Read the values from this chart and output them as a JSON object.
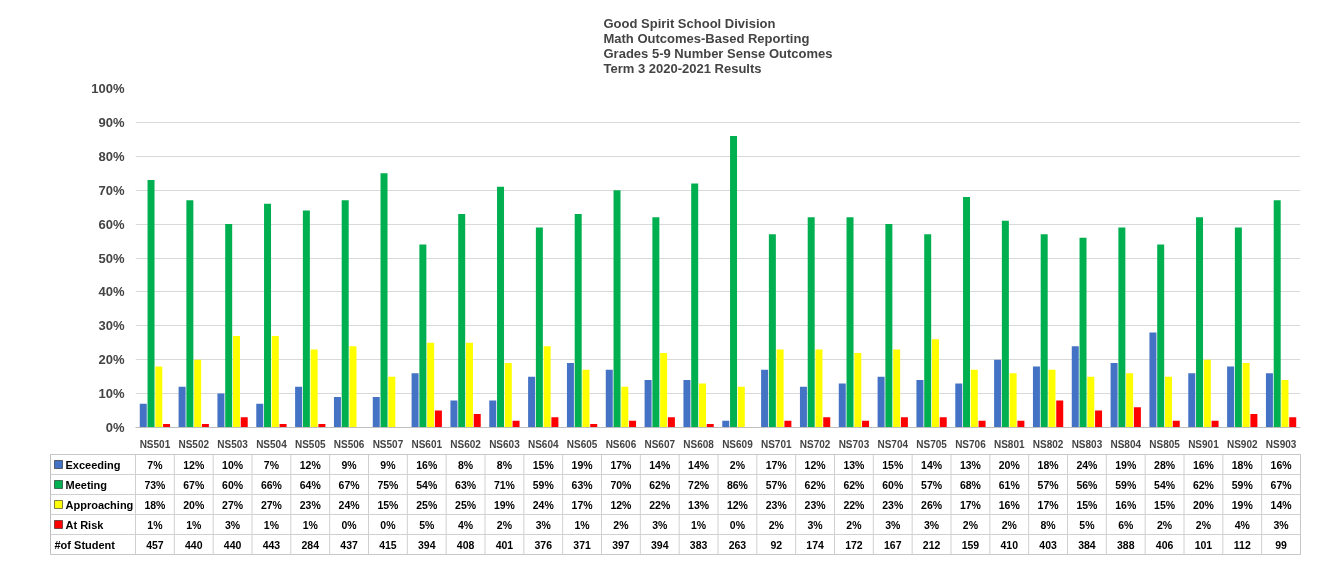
{
  "chart_data": {
    "type": "bar",
    "title": "Good Spirit School Division\nMath Outcomes-Based Reporting\nGrades 5-9 Number Sense Outcomes\nTerm 3 2020-2021 Results",
    "categories": [
      "NS501",
      "NS502",
      "NS503",
      "NS504",
      "NS505",
      "NS506",
      "NS507",
      "NS601",
      "NS602",
      "NS603",
      "NS604",
      "NS605",
      "NS606",
      "NS607",
      "NS608",
      "NS609",
      "NS701",
      "NS702",
      "NS703",
      "NS704",
      "NS705",
      "NS706",
      "NS801",
      "NS802",
      "NS803",
      "NS804",
      "NS805",
      "NS901",
      "NS902",
      "NS903"
    ],
    "series": [
      {
        "name": "Exceeding",
        "color": "#4472c4",
        "values": [
          7,
          12,
          10,
          7,
          12,
          9,
          9,
          16,
          8,
          8,
          15,
          19,
          17,
          14,
          14,
          2,
          17,
          12,
          13,
          15,
          14,
          13,
          20,
          18,
          24,
          19,
          28,
          16,
          18,
          16
        ],
        "value_labels": [
          "7%",
          "12%",
          "10%",
          "7%",
          "12%",
          "9%",
          "9%",
          "16%",
          "8%",
          "8%",
          "15%",
          "19%",
          "17%",
          "14%",
          "14%",
          "2%",
          "17%",
          "12%",
          "13%",
          "15%",
          "14%",
          "13%",
          "20%",
          "18%",
          "24%",
          "19%",
          "28%",
          "16%",
          "18%",
          "16%"
        ]
      },
      {
        "name": "Meeting",
        "color": "#00b050",
        "values": [
          73,
          67,
          60,
          66,
          64,
          67,
          75,
          54,
          63,
          71,
          59,
          63,
          70,
          62,
          72,
          86,
          57,
          62,
          62,
          60,
          57,
          68,
          61,
          57,
          56,
          59,
          54,
          62,
          59,
          67
        ],
        "value_labels": [
          "73%",
          "67%",
          "60%",
          "66%",
          "64%",
          "67%",
          "75%",
          "54%",
          "63%",
          "71%",
          "59%",
          "63%",
          "70%",
          "62%",
          "72%",
          "86%",
          "57%",
          "62%",
          "62%",
          "60%",
          "57%",
          "68%",
          "61%",
          "57%",
          "56%",
          "59%",
          "54%",
          "62%",
          "59%",
          "67%"
        ]
      },
      {
        "name": "Approaching",
        "color": "#ffff00",
        "values": [
          18,
          20,
          27,
          27,
          23,
          24,
          15,
          25,
          25,
          19,
          24,
          17,
          12,
          22,
          13,
          12,
          23,
          23,
          22,
          23,
          26,
          17,
          16,
          17,
          15,
          16,
          15,
          20,
          19,
          14
        ],
        "value_labels": [
          "18%",
          "20%",
          "27%",
          "27%",
          "23%",
          "24%",
          "15%",
          "25%",
          "25%",
          "19%",
          "24%",
          "17%",
          "12%",
          "22%",
          "13%",
          "12%",
          "23%",
          "23%",
          "22%",
          "23%",
          "26%",
          "17%",
          "16%",
          "17%",
          "15%",
          "16%",
          "15%",
          "20%",
          "19%",
          "14%"
        ]
      },
      {
        "name": "At Risk",
        "color": "#ff0000",
        "values": [
          1,
          1,
          3,
          1,
          1,
          0,
          0,
          5,
          4,
          2,
          3,
          1,
          2,
          3,
          1,
          0,
          2,
          3,
          2,
          3,
          3,
          2,
          2,
          8,
          5,
          6,
          2,
          2,
          4,
          3
        ],
        "value_labels": [
          "1%",
          "1%",
          "3%",
          "1%",
          "1%",
          "0%",
          "0%",
          "5%",
          "4%",
          "2%",
          "3%",
          "1%",
          "2%",
          "3%",
          "1%",
          "0%",
          "2%",
          "3%",
          "2%",
          "3%",
          "3%",
          "2%",
          "2%",
          "8%",
          "5%",
          "6%",
          "2%",
          "2%",
          "4%",
          "3%"
        ]
      }
    ],
    "annotations": [
      "#of Student",
      "457",
      "440",
      "440",
      "443",
      "284",
      "437",
      "415",
      "394",
      "408",
      "401",
      "376",
      "371",
      "397",
      "394",
      "383",
      "263",
      "92",
      "174",
      "172",
      "167",
      "212",
      "159",
      "410",
      "403",
      "384",
      "388",
      "406",
      "101",
      "112",
      "99"
    ],
    "ylim": [
      0,
      100
    ],
    "yticks": [
      {
        "value": 0,
        "label": "0%"
      },
      {
        "value": 10,
        "label": "10%"
      },
      {
        "value": 20,
        "label": "20%"
      },
      {
        "value": 30,
        "label": "30%"
      },
      {
        "value": 40,
        "label": "40%"
      },
      {
        "value": 50,
        "label": "50%"
      },
      {
        "value": 60,
        "label": "60%"
      },
      {
        "value": 70,
        "label": "70%"
      },
      {
        "value": 80,
        "label": "80%"
      },
      {
        "value": 90,
        "label": "90%"
      },
      {
        "value": 100,
        "label": "100%"
      }
    ],
    "grid": "y",
    "legend": "bottom"
  }
}
